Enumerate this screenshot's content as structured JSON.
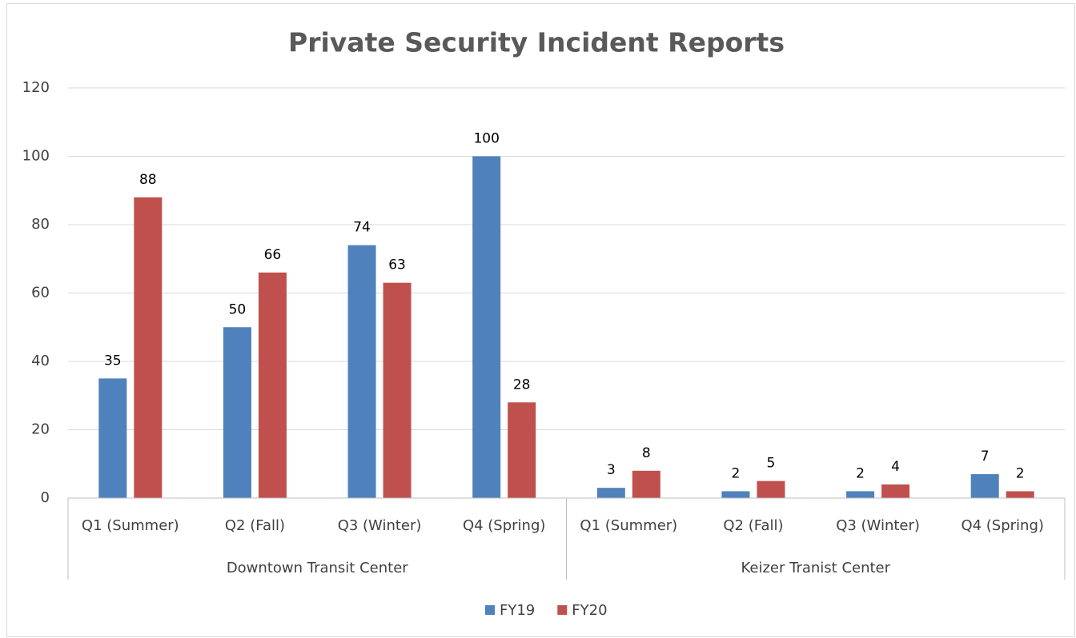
{
  "chart_data": {
    "type": "bar",
    "title": "Private Security Incident Reports",
    "categories": [
      "Q1 (Summer)",
      "Q2 (Fall)",
      "Q3 (Winter)",
      "Q4 (Spring)",
      "Q1 (Summer)",
      "Q2 (Fall)",
      "Q3 (Winter)",
      "Q4 (Spring)"
    ],
    "category_groups": [
      "Downtown Transit Center",
      "Keizer Tranist Center"
    ],
    "series": [
      {
        "name": "FY19",
        "color": "#4f81bd",
        "values": [
          35,
          50,
          74,
          100,
          3,
          2,
          2,
          7
        ]
      },
      {
        "name": "FY20",
        "color": "#c0504d",
        "values": [
          88,
          66,
          63,
          28,
          8,
          5,
          4,
          2
        ]
      }
    ],
    "ylim": [
      0,
      120
    ],
    "yticks": [
      0,
      20,
      40,
      60,
      80,
      100,
      120
    ],
    "grid": true,
    "legend": "bottom"
  }
}
